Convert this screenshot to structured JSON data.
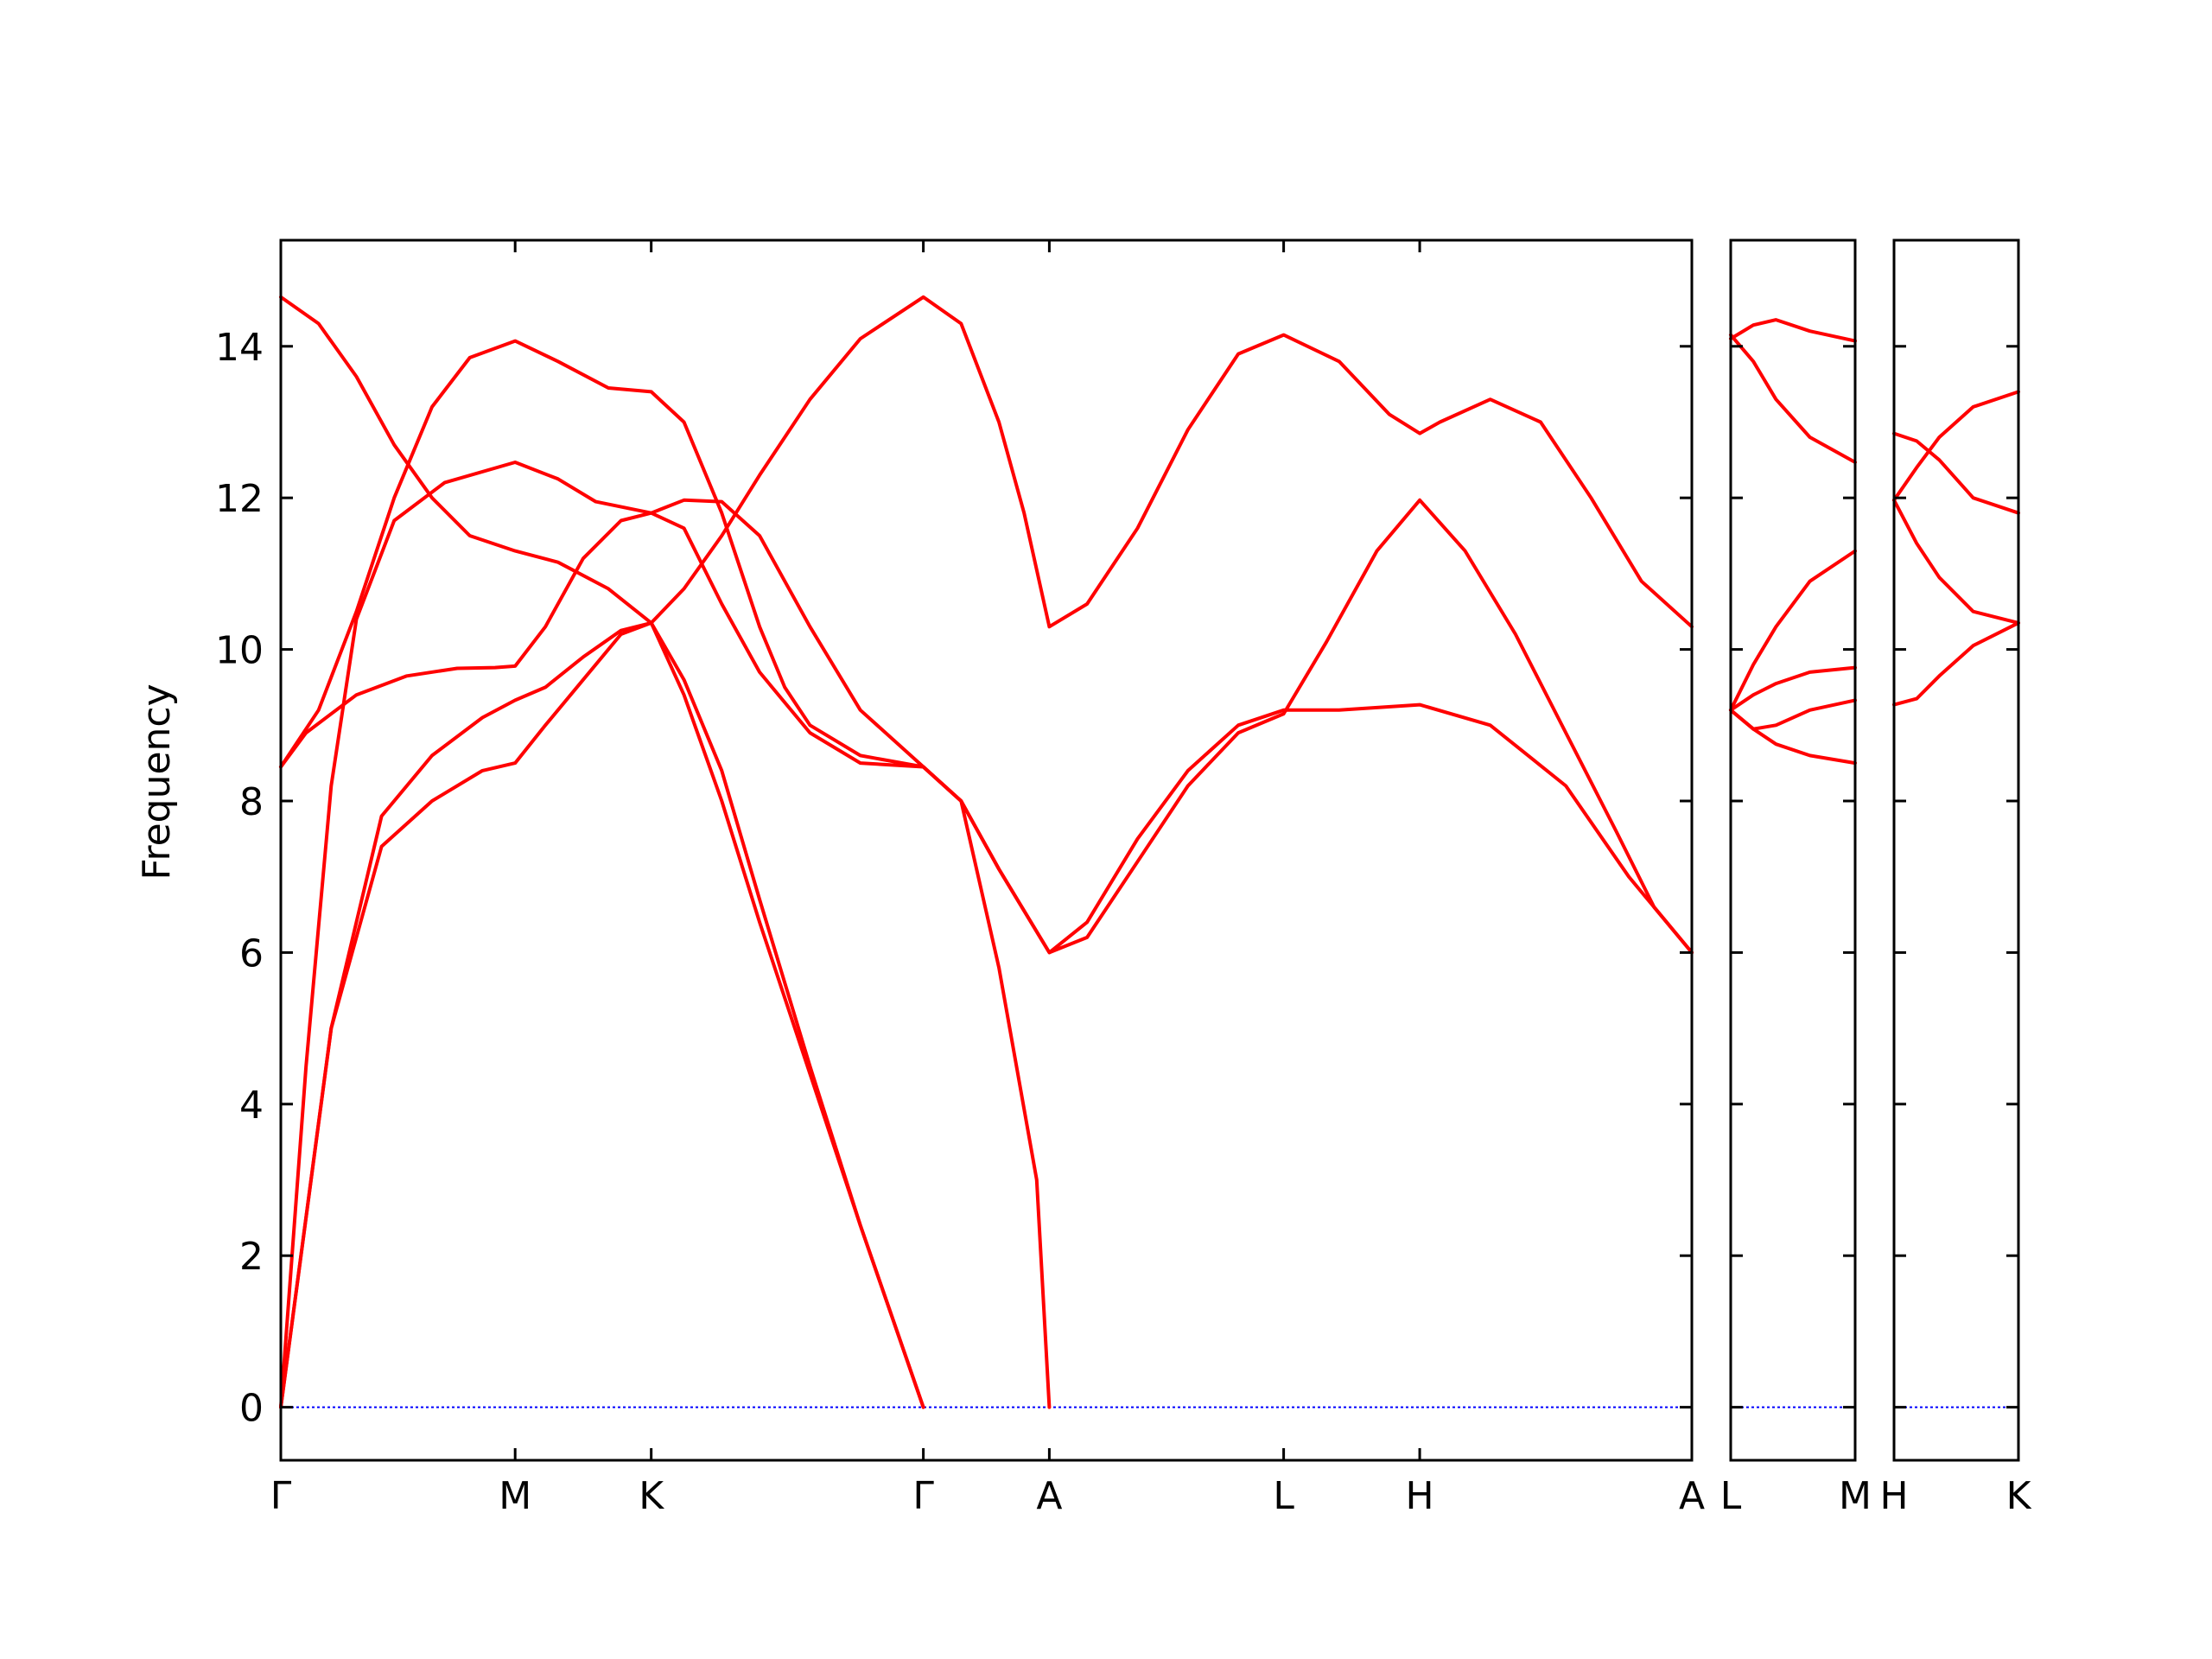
{
  "chart_data": {
    "type": "line",
    "ylabel": "Frequency",
    "ylim": [
      -0.7,
      15.4
    ],
    "yticks": [
      0,
      2,
      4,
      6,
      8,
      10,
      12,
      14
    ],
    "grid": false,
    "colors": {
      "bands": "#ff0000",
      "zero_line": "#0000ff",
      "axes": "#000000"
    },
    "panels": [
      {
        "name": "Gamma-M-K-Gamma-A-L-H-A",
        "xlim": [
          0,
          5.6
        ],
        "ticks": [
          {
            "x": 0,
            "label": "Γ"
          },
          {
            "x": 0.93,
            "label": "M"
          },
          {
            "x": 1.47,
            "label": "K"
          },
          {
            "x": 2.55,
            "label": "Γ"
          },
          {
            "x": 3.05,
            "label": "A"
          },
          {
            "x": 3.98,
            "label": "L"
          },
          {
            "x": 4.52,
            "label": "H"
          },
          {
            "x": 5.6,
            "label": "A"
          }
        ],
        "series": [
          {
            "values": [
              [
                0,
                0
              ],
              [
                0.2,
                5.0
              ],
              [
                0.4,
                7.8
              ],
              [
                0.6,
                8.6
              ],
              [
                0.8,
                9.1
              ],
              [
                0.93,
                9.33
              ],
              [
                1.05,
                9.5
              ],
              [
                1.2,
                9.9
              ],
              [
                1.35,
                10.25
              ],
              [
                1.47,
                10.35
              ],
              [
                1.6,
                9.4
              ],
              [
                1.75,
                8.0
              ],
              [
                1.9,
                6.4
              ],
              [
                2.1,
                4.4
              ],
              [
                2.3,
                2.4
              ],
              [
                2.55,
                0
              ]
            ]
          },
          {
            "values": [
              [
                0,
                0
              ],
              [
                0.2,
                5.0
              ],
              [
                0.4,
                7.4
              ],
              [
                0.6,
                8.0
              ],
              [
                0.8,
                8.4
              ],
              [
                0.93,
                8.5
              ],
              [
                1.05,
                9.0
              ],
              [
                1.2,
                9.6
              ],
              [
                1.35,
                10.2
              ],
              [
                1.47,
                10.35
              ],
              [
                1.6,
                9.6
              ],
              [
                1.75,
                8.4
              ],
              [
                1.9,
                6.7
              ],
              [
                2.1,
                4.5
              ],
              [
                2.3,
                2.4
              ],
              [
                2.55,
                0
              ]
            ]
          },
          {
            "values": [
              [
                0,
                0
              ],
              [
                0.1,
                4.5
              ],
              [
                0.2,
                8.2
              ],
              [
                0.3,
                10.4
              ],
              [
                0.45,
                11.7
              ],
              [
                0.65,
                12.2
              ],
              [
                0.93,
                12.47
              ],
              [
                1.1,
                12.25
              ],
              [
                1.25,
                11.95
              ],
              [
                1.47,
                11.8
              ],
              [
                1.6,
                11.6
              ],
              [
                1.75,
                10.6
              ],
              [
                1.9,
                9.7
              ],
              [
                2.1,
                8.9
              ],
              [
                2.3,
                8.5
              ],
              [
                2.55,
                8.45
              ],
              [
                2.7,
                8.0
              ],
              [
                2.85,
                7.1
              ],
              [
                3.05,
                6.0
              ],
              [
                3.2,
                6.4
              ],
              [
                3.4,
                7.5
              ],
              [
                3.6,
                8.4
              ],
              [
                3.8,
                9.0
              ],
              [
                3.98,
                9.2
              ],
              [
                4.2,
                9.2
              ],
              [
                4.52,
                9.27
              ],
              [
                4.8,
                9.0
              ],
              [
                5.1,
                8.2
              ],
              [
                5.35,
                7.0
              ],
              [
                5.6,
                6.0
              ]
            ]
          },
          {
            "values": [
              [
                0,
                8.45
              ],
              [
                0.1,
                8.9
              ],
              [
                0.3,
                9.4
              ],
              [
                0.5,
                9.65
              ],
              [
                0.7,
                9.75
              ],
              [
                0.85,
                9.76
              ],
              [
                0.93,
                9.78
              ],
              [
                1.05,
                10.3
              ],
              [
                1.2,
                11.2
              ],
              [
                1.35,
                11.7
              ],
              [
                1.47,
                11.8
              ],
              [
                1.6,
                11.97
              ],
              [
                1.75,
                11.95
              ],
              [
                1.9,
                11.5
              ],
              [
                2.1,
                10.3
              ],
              [
                2.3,
                9.2
              ],
              [
                2.55,
                8.45
              ],
              [
                2.7,
                8.0
              ],
              [
                2.85,
                7.1
              ],
              [
                3.05,
                6.0
              ],
              [
                3.2,
                6.2
              ],
              [
                3.4,
                7.2
              ],
              [
                3.6,
                8.2
              ],
              [
                3.8,
                8.9
              ],
              [
                3.98,
                9.15
              ],
              [
                4.15,
                10.1
              ],
              [
                4.35,
                11.3
              ],
              [
                4.52,
                11.97
              ],
              [
                4.7,
                11.3
              ],
              [
                4.9,
                10.2
              ],
              [
                5.1,
                8.9
              ],
              [
                5.3,
                7.6
              ],
              [
                5.45,
                6.6
              ],
              [
                5.6,
                6.0
              ]
            ]
          },
          {
            "values": [
              [
                0,
                8.45
              ],
              [
                0.15,
                9.2
              ],
              [
                0.3,
                10.5
              ],
              [
                0.45,
                12.0
              ],
              [
                0.6,
                13.2
              ],
              [
                0.75,
                13.85
              ],
              [
                0.93,
                14.07
              ],
              [
                1.1,
                13.8
              ],
              [
                1.3,
                13.45
              ],
              [
                1.47,
                13.4
              ],
              [
                1.6,
                13.0
              ],
              [
                1.75,
                11.8
              ],
              [
                1.9,
                10.3
              ],
              [
                2.0,
                9.5
              ],
              [
                2.1,
                9.0
              ],
              [
                2.3,
                8.6
              ],
              [
                2.55,
                8.45
              ],
              [
                2.7,
                8.0
              ],
              [
                2.85,
                5.8
              ],
              [
                3.0,
                3.0
              ],
              [
                3.05,
                0
              ],
              [
                3.05,
                0
              ]
            ]
          },
          {
            "values": [
              [
                0,
                14.65
              ],
              [
                0.15,
                14.3
              ],
              [
                0.3,
                13.6
              ],
              [
                0.45,
                12.7
              ],
              [
                0.6,
                12.0
              ],
              [
                0.75,
                11.5
              ],
              [
                0.93,
                11.3
              ],
              [
                1.1,
                11.15
              ],
              [
                1.3,
                10.8
              ],
              [
                1.47,
                10.35
              ],
              [
                1.6,
                10.8
              ],
              [
                1.75,
                11.5
              ],
              [
                1.9,
                12.3
              ],
              [
                2.1,
                13.3
              ],
              [
                2.3,
                14.1
              ],
              [
                2.55,
                14.65
              ],
              [
                2.7,
                14.3
              ],
              [
                2.85,
                13.0
              ],
              [
                2.95,
                11.8
              ],
              [
                3.05,
                10.3
              ],
              [
                3.2,
                10.6
              ],
              [
                3.4,
                11.6
              ],
              [
                3.6,
                12.9
              ],
              [
                3.8,
                13.9
              ],
              [
                3.98,
                14.15
              ],
              [
                4.2,
                13.8
              ],
              [
                4.4,
                13.1
              ],
              [
                4.52,
                12.85
              ],
              [
                4.6,
                13.0
              ],
              [
                4.8,
                13.3
              ],
              [
                5.0,
                13.0
              ],
              [
                5.2,
                12.0
              ],
              [
                5.4,
                10.9
              ],
              [
                5.6,
                10.3
              ]
            ]
          }
        ]
      },
      {
        "name": "L-M",
        "xlim": [
          0,
          0.55
        ],
        "ticks": [
          {
            "x": 0,
            "label": "L"
          },
          {
            "x": 0.55,
            "label": "M"
          }
        ],
        "series": [
          {
            "values": [
              [
                0,
                9.2
              ],
              [
                0.1,
                8.95
              ],
              [
                0.2,
                8.75
              ],
              [
                0.35,
                8.6
              ],
              [
                0.55,
                8.5
              ]
            ]
          },
          {
            "values": [
              [
                0,
                9.2
              ],
              [
                0.1,
                8.95
              ],
              [
                0.2,
                9.0
              ],
              [
                0.35,
                9.2
              ],
              [
                0.55,
                9.33
              ]
            ]
          },
          {
            "values": [
              [
                0,
                9.2
              ],
              [
                0.1,
                9.4
              ],
              [
                0.2,
                9.55
              ],
              [
                0.35,
                9.7
              ],
              [
                0.55,
                9.76
              ]
            ]
          },
          {
            "values": [
              [
                0,
                9.2
              ],
              [
                0.1,
                9.8
              ],
              [
                0.2,
                10.3
              ],
              [
                0.35,
                10.9
              ],
              [
                0.55,
                11.3
              ]
            ]
          },
          {
            "values": [
              [
                0,
                14.15
              ],
              [
                0.1,
                13.8
              ],
              [
                0.2,
                13.3
              ],
              [
                0.35,
                12.8
              ],
              [
                0.55,
                12.47
              ]
            ]
          },
          {
            "values": [
              [
                0,
                14.1
              ],
              [
                0.1,
                14.28
              ],
              [
                0.2,
                14.35
              ],
              [
                0.35,
                14.2
              ],
              [
                0.55,
                14.07
              ]
            ]
          }
        ]
      },
      {
        "name": "H-K",
        "xlim": [
          0,
          0.55
        ],
        "ticks": [
          {
            "x": 0,
            "label": "H"
          },
          {
            "x": 0.55,
            "label": "K"
          }
        ],
        "series": [
          {
            "values": [
              [
                0,
                9.27
              ],
              [
                0.1,
                9.35
              ],
              [
                0.2,
                9.65
              ],
              [
                0.35,
                10.05
              ],
              [
                0.55,
                10.35
              ]
            ]
          },
          {
            "values": [
              [
                0,
                11.97
              ],
              [
                0.1,
                11.4
              ],
              [
                0.2,
                10.95
              ],
              [
                0.35,
                10.5
              ],
              [
                0.55,
                10.35
              ]
            ]
          },
          {
            "values": [
              [
                0,
                11.97
              ],
              [
                0.1,
                12.4
              ],
              [
                0.2,
                12.8
              ],
              [
                0.35,
                13.2
              ],
              [
                0.55,
                13.4
              ]
            ]
          },
          {
            "values": [
              [
                0,
                12.85
              ],
              [
                0.1,
                12.75
              ],
              [
                0.2,
                12.5
              ],
              [
                0.35,
                12.0
              ],
              [
                0.55,
                11.8
              ]
            ]
          }
        ]
      }
    ]
  }
}
